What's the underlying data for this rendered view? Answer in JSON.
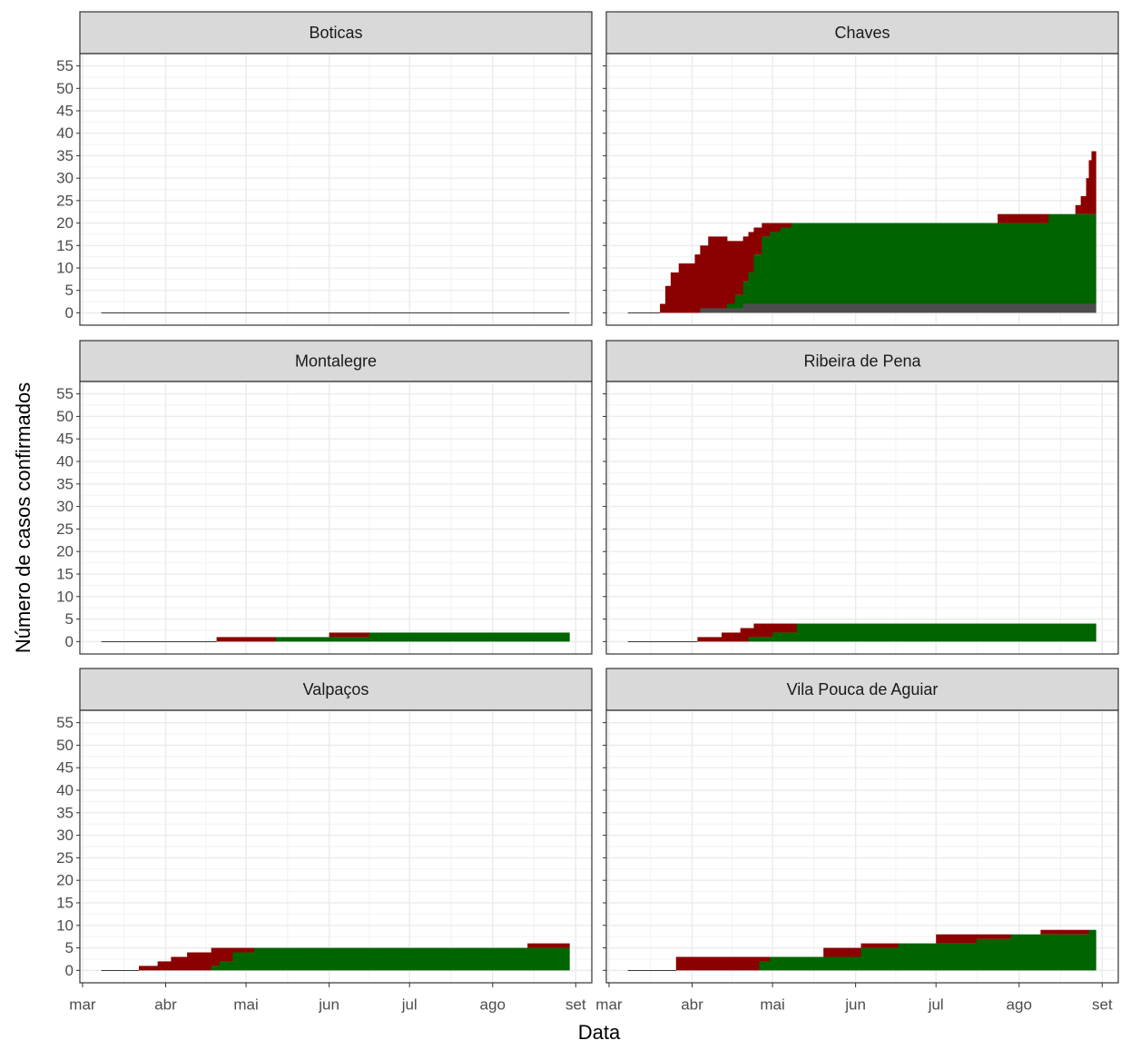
{
  "chart_data": {
    "type": "step-area",
    "x_label": "Data",
    "y_label": "Número de casos confirmados",
    "xlim": [
      -1,
      190
    ],
    "ylim": [
      -2.75,
      57.75
    ],
    "xticks": [
      {
        "value": 0,
        "label": "mar"
      },
      {
        "value": 31,
        "label": "abr"
      },
      {
        "value": 61,
        "label": "mai"
      },
      {
        "value": 92,
        "label": "jun"
      },
      {
        "value": 122,
        "label": "jul"
      },
      {
        "value": 153,
        "label": "ago"
      },
      {
        "value": 184,
        "label": "set"
      }
    ],
    "yticks": [
      0,
      5,
      10,
      15,
      20,
      25,
      30,
      35,
      40,
      45,
      50,
      55
    ],
    "grid": true,
    "facets": [
      {
        "title": "Boticas",
        "x": [
          7,
          181
        ],
        "series": [
          {
            "color": "#4d4d4d",
            "values": [
              0,
              0
            ]
          },
          {
            "color": "#006400",
            "values": [
              0,
              0
            ]
          },
          {
            "color": "#8b0000",
            "values": [
              0,
              0
            ]
          }
        ]
      },
      {
        "title": "Chaves",
        "x": [
          7,
          19,
          21,
          23,
          26,
          32,
          34,
          37,
          44,
          47,
          50,
          52,
          54,
          57,
          60,
          64,
          68,
          145,
          164,
          174,
          176,
          178,
          179,
          180,
          181
        ],
        "series": [
          {
            "color": "#4d4d4d",
            "values": [
              0,
              0,
              0,
              0,
              0,
              0,
              1,
              1,
              1,
              1,
              2,
              2,
              2,
              2,
              2,
              2,
              2,
              2,
              2,
              2,
              2,
              2,
              2,
              2,
              2
            ]
          },
          {
            "color": "#006400",
            "values": [
              0,
              0,
              0,
              0,
              0,
              0,
              0,
              0,
              1,
              3,
              5,
              7,
              11,
              15,
              16,
              17,
              18,
              18,
              20,
              20,
              20,
              20,
              20,
              20,
              20
            ]
          },
          {
            "color": "#8b0000",
            "values": [
              0,
              2,
              6,
              9,
              11,
              13,
              14,
              16,
              14,
              12,
              10,
              9,
              6,
              3,
              2,
              1,
              0,
              2,
              0,
              2,
              4,
              8,
              12,
              14,
              14
            ]
          }
        ]
      },
      {
        "title": "Montalegre",
        "x": [
          7,
          50,
          72,
          92,
          107,
          181
        ],
        "series": [
          {
            "color": "#4d4d4d",
            "values": [
              0,
              0,
              0,
              0,
              0,
              0
            ]
          },
          {
            "color": "#006400",
            "values": [
              0,
              0,
              1,
              1,
              2,
              2
            ]
          },
          {
            "color": "#8b0000",
            "values": [
              0,
              1,
              0,
              1,
              0,
              0
            ]
          }
        ]
      },
      {
        "title": "Ribeira de Pena",
        "x": [
          7,
          33,
          42,
          49,
          52,
          54,
          61,
          70,
          181
        ],
        "series": [
          {
            "color": "#4d4d4d",
            "values": [
              0,
              0,
              0,
              0,
              0,
              0,
              0,
              0,
              0
            ]
          },
          {
            "color": "#006400",
            "values": [
              0,
              0,
              0,
              0,
              1,
              1,
              2,
              4,
              4
            ]
          },
          {
            "color": "#8b0000",
            "values": [
              0,
              1,
              2,
              3,
              2,
              3,
              2,
              0,
              0
            ]
          }
        ]
      },
      {
        "title": "Valpaços",
        "x": [
          7,
          21,
          28,
          33,
          39,
          48,
          51,
          56,
          64,
          166,
          181
        ],
        "series": [
          {
            "color": "#4d4d4d",
            "values": [
              0,
              0,
              0,
              0,
              0,
              0,
              0,
              0,
              0,
              0,
              0
            ]
          },
          {
            "color": "#006400",
            "values": [
              0,
              0,
              0,
              0,
              0,
              1,
              2,
              4,
              5,
              5,
              5
            ]
          },
          {
            "color": "#8b0000",
            "values": [
              0,
              1,
              2,
              3,
              4,
              4,
              3,
              1,
              0,
              1,
              1
            ]
          }
        ]
      },
      {
        "title": "Vila Pouca de Aguiar",
        "x": [
          7,
          25,
          56,
          60,
          80,
          94,
          108,
          122,
          137,
          150,
          161,
          179,
          181
        ],
        "series": [
          {
            "color": "#4d4d4d",
            "values": [
              0,
              0,
              0,
              0,
              0,
              0,
              0,
              0,
              0,
              0,
              0,
              0,
              0
            ]
          },
          {
            "color": "#006400",
            "values": [
              0,
              0,
              2,
              3,
              3,
              5,
              6,
              6,
              7,
              8,
              8,
              9,
              9
            ]
          },
          {
            "color": "#8b0000",
            "values": [
              0,
              3,
              1,
              0,
              2,
              1,
              0,
              2,
              1,
              0,
              1,
              0,
              0
            ]
          }
        ]
      }
    ]
  }
}
